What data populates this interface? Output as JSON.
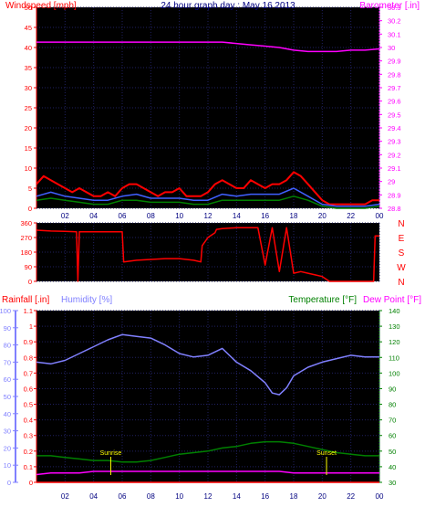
{
  "header": {
    "title": "24 hour graph day : May 16 2013"
  },
  "colors": {
    "background": "#ffffff",
    "plot_background": "#000000",
    "wind": "#ff0000",
    "wind_avg": "#4060ff",
    "wind_gust_low": "#008000",
    "direction": "#ff0000",
    "barometer": "#ff00ff",
    "rainfall": "#ff0000",
    "humidity": "#8080ff",
    "temperature": "#008000",
    "dew_point": "#ff00ff",
    "axis_text": "#000080",
    "annotation": "#ffff00"
  },
  "chart_data": [
    {
      "type": "line",
      "panel": "wind-barometer",
      "title": "24 hour graph day : May 16 2013",
      "left_label": "Windspeed [mph]",
      "right_label": "Barometer [.in]",
      "x_ticks": [
        "02",
        "04",
        "06",
        "08",
        "10",
        "12",
        "14",
        "16",
        "18",
        "20",
        "22",
        "00"
      ],
      "left_ticks": [
        "0",
        "5",
        "10",
        "15",
        "20",
        "25",
        "30",
        "35",
        "40",
        "45",
        "50"
      ],
      "right_ticks": [
        "28.8",
        "28.9",
        "29",
        "29.1",
        "29.2",
        "29.3",
        "29.4",
        "29.5",
        "29.6",
        "29.7",
        "29.8",
        "29.9",
        "30",
        "30.1",
        "30.2",
        "30.3"
      ],
      "ylim_left": [
        0,
        50
      ],
      "ylim_right": [
        28.8,
        30.3
      ],
      "xlim": [
        0,
        24
      ],
      "series": [
        {
          "name": "Windspeed [mph]",
          "axis": "left",
          "x": [
            0,
            0.5,
            1,
            1.5,
            2,
            2.5,
            3,
            3.5,
            4,
            4.5,
            5,
            5.5,
            6,
            6.5,
            7,
            7.5,
            8,
            8.5,
            9,
            9.5,
            10,
            10.5,
            11,
            11.5,
            12,
            12.5,
            13,
            13.5,
            14,
            14.5,
            15,
            15.5,
            16,
            16.5,
            17,
            17.5,
            18,
            18.5,
            19,
            19.5,
            20,
            20.5,
            21,
            21.5,
            22,
            22.5,
            23,
            23.5,
            24
          ],
          "y": [
            6,
            8,
            7,
            6,
            5,
            4,
            5,
            4,
            3,
            3,
            4,
            3,
            5,
            6,
            6,
            5,
            4,
            3,
            4,
            4,
            5,
            3,
            3,
            3,
            4,
            6,
            7,
            6,
            5,
            5,
            7,
            6,
            5,
            6,
            6,
            7,
            9,
            8,
            6,
            4,
            2,
            1,
            1,
            1,
            1,
            1,
            1,
            2,
            2
          ]
        },
        {
          "name": "Average windspeed",
          "axis": "left",
          "x": [
            0,
            1,
            2,
            3,
            4,
            5,
            6,
            7,
            8,
            9,
            10,
            11,
            12,
            13,
            14,
            15,
            16,
            17,
            18,
            19,
            20,
            21,
            22,
            23,
            24
          ],
          "y": [
            3,
            4,
            3,
            2.5,
            2,
            2,
            3,
            3.5,
            2.5,
            2.5,
            2.5,
            2,
            2,
            3.5,
            3,
            3.5,
            3.5,
            3.5,
            5,
            3,
            1,
            0.5,
            0.5,
            0.5,
            1
          ]
        },
        {
          "name": "Minimum windspeed",
          "axis": "left",
          "x": [
            0,
            1,
            2,
            3,
            4,
            5,
            6,
            7,
            8,
            9,
            10,
            11,
            12,
            13,
            14,
            15,
            16,
            17,
            18,
            19,
            20,
            21,
            22,
            23,
            24
          ],
          "y": [
            2,
            2.5,
            2,
            1.5,
            1,
            1,
            2,
            2,
            1.5,
            1.5,
            1.5,
            1,
            1,
            2,
            2,
            2,
            2,
            2,
            3,
            2,
            0.5,
            0,
            0,
            0,
            0.5
          ]
        },
        {
          "name": "Barometer [.in]",
          "axis": "right",
          "x": [
            0,
            1,
            2,
            3,
            4,
            5,
            6,
            7,
            8,
            9,
            10,
            11,
            12,
            13,
            14,
            15,
            16,
            17,
            18,
            19,
            20,
            21,
            22,
            23,
            24
          ],
          "y": [
            30.04,
            30.04,
            30.04,
            30.04,
            30.04,
            30.04,
            30.04,
            30.04,
            30.04,
            30.04,
            30.04,
            30.04,
            30.04,
            30.04,
            30.03,
            30.02,
            30.01,
            30.0,
            29.98,
            29.97,
            29.97,
            29.97,
            29.98,
            29.98,
            29.99
          ]
        }
      ]
    },
    {
      "type": "line",
      "panel": "wind-direction",
      "left_ticks": [
        "0",
        "90",
        "180",
        "270",
        "360"
      ],
      "right_ticks": [
        "N",
        "W",
        "S",
        "E",
        "N"
      ],
      "ylim": [
        0,
        360
      ],
      "xlim": [
        0,
        24
      ],
      "series": [
        {
          "name": "Wind direction",
          "x": [
            0,
            1,
            2,
            2.8,
            2.9,
            3,
            6,
            6.1,
            7,
            8,
            9,
            10,
            11,
            11.5,
            11.6,
            12,
            12.5,
            12.6,
            13,
            14,
            15,
            15.5,
            16,
            16.5,
            17,
            17.5,
            18,
            18.5,
            19,
            19.5,
            20,
            20.5,
            21,
            22,
            23,
            23.6,
            23.7,
            24
          ],
          "y": [
            315,
            310,
            308,
            305,
            0,
            305,
            305,
            120,
            130,
            135,
            140,
            140,
            130,
            120,
            220,
            270,
            300,
            320,
            325,
            330,
            330,
            330,
            100,
            330,
            60,
            330,
            50,
            60,
            50,
            40,
            30,
            0,
            0,
            0,
            0,
            0,
            280,
            280
          ]
        }
      ]
    },
    {
      "type": "line",
      "panel": "rain-humidity-temperature",
      "labels": [
        "Rainfall [.in]",
        "Humidity [%]",
        "Temperature [°F]",
        "Dew Point [°F]"
      ],
      "rain_ticks": [
        "0",
        "0.1",
        "0.2",
        "0.3",
        "0.4",
        "0.5",
        "0.6",
        "0.7",
        "0.8",
        "0.9",
        "1",
        "1.1"
      ],
      "humidity_ticks": [
        "0",
        "10",
        "20",
        "30",
        "40",
        "50",
        "60",
        "70",
        "80",
        "90",
        "100"
      ],
      "temp_ticks": [
        "30",
        "40",
        "50",
        "60",
        "70",
        "80",
        "90",
        "100",
        "110",
        "120",
        "130",
        "140"
      ],
      "ylim_rain": [
        0,
        1.1
      ],
      "ylim_humidity": [
        0,
        100
      ],
      "ylim_temp": [
        30,
        140
      ],
      "xlim": [
        0,
        24
      ],
      "annotations": [
        {
          "text": "Sunrise",
          "x": 5.2
        },
        {
          "text": "Sunset",
          "x": 20.3
        }
      ],
      "series": [
        {
          "name": "Humidity [%]",
          "axis": "humidity",
          "x": [
            0,
            1,
            2,
            3,
            4,
            5,
            6,
            7,
            8,
            9,
            10,
            11,
            12,
            13,
            14,
            15,
            16,
            16.5,
            17,
            17.5,
            18,
            19,
            20,
            21,
            22,
            23,
            24
          ],
          "y": [
            70,
            69,
            71,
            75,
            79,
            83,
            86,
            85,
            84,
            80,
            75,
            73,
            74,
            78,
            70,
            65,
            58,
            52,
            51,
            55,
            62,
            67,
            70,
            72,
            74,
            73,
            73
          ]
        },
        {
          "name": "Temperature [°F]",
          "axis": "temp",
          "x": [
            0,
            1,
            2,
            3,
            4,
            5,
            6,
            7,
            8,
            9,
            10,
            11,
            12,
            13,
            14,
            15,
            16,
            17,
            18,
            19,
            20,
            21,
            22,
            23,
            24
          ],
          "y": [
            47,
            47,
            46,
            45,
            44,
            44,
            43,
            43,
            44,
            46,
            48,
            49,
            50,
            52,
            53,
            55,
            56,
            56,
            55,
            53,
            51,
            49,
            48,
            47,
            47
          ]
        },
        {
          "name": "Dew Point [°F]",
          "axis": "temp",
          "x": [
            0,
            1,
            2,
            3,
            4,
            5,
            6,
            7,
            8,
            9,
            10,
            11,
            12,
            13,
            14,
            15,
            16,
            17,
            18,
            19,
            20,
            21,
            22,
            23,
            24
          ],
          "y": [
            35,
            36,
            36,
            36,
            37,
            37,
            37,
            37,
            37,
            37,
            37,
            37,
            37,
            37,
            37,
            37,
            37,
            37,
            36,
            36,
            36,
            36,
            36,
            36,
            36
          ]
        },
        {
          "name": "Rainfall [.in]",
          "axis": "rain",
          "x": [
            0,
            24
          ],
          "y": [
            0,
            0
          ]
        }
      ]
    }
  ]
}
